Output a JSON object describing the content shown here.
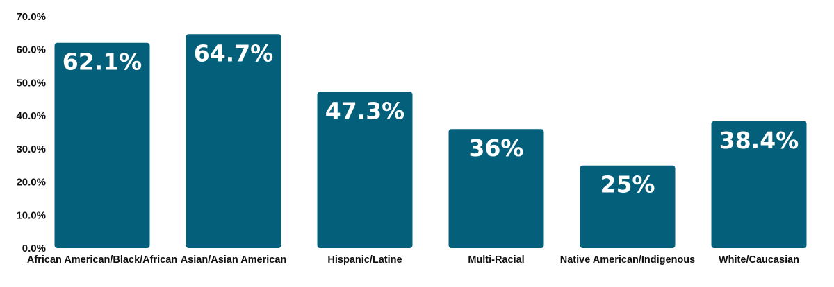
{
  "chart_data": {
    "type": "bar",
    "categories": [
      "African American/Black/African",
      "Asian/Asian American",
      "Hispanic/Latine",
      "Multi-Racial",
      "Native American/Indigenous",
      "White/Caucasian"
    ],
    "values": [
      62.1,
      64.7,
      47.3,
      36,
      25,
      38.4
    ],
    "data_labels": [
      "62.1%",
      "64.7%",
      "47.3%",
      "36%",
      "25%",
      "38.4%"
    ],
    "yticks": [
      "0.0%",
      "10.0%",
      "20.0%",
      "30.0%",
      "40.0%",
      "50.0%",
      "60.0%",
      "70.0%"
    ],
    "ylim": [
      0,
      70
    ],
    "title": "",
    "xlabel": "",
    "ylabel": "",
    "grid": false,
    "legend": "none",
    "bar_color": "#04607A",
    "label_color": "#ffffff",
    "text_color": "#111111"
  }
}
